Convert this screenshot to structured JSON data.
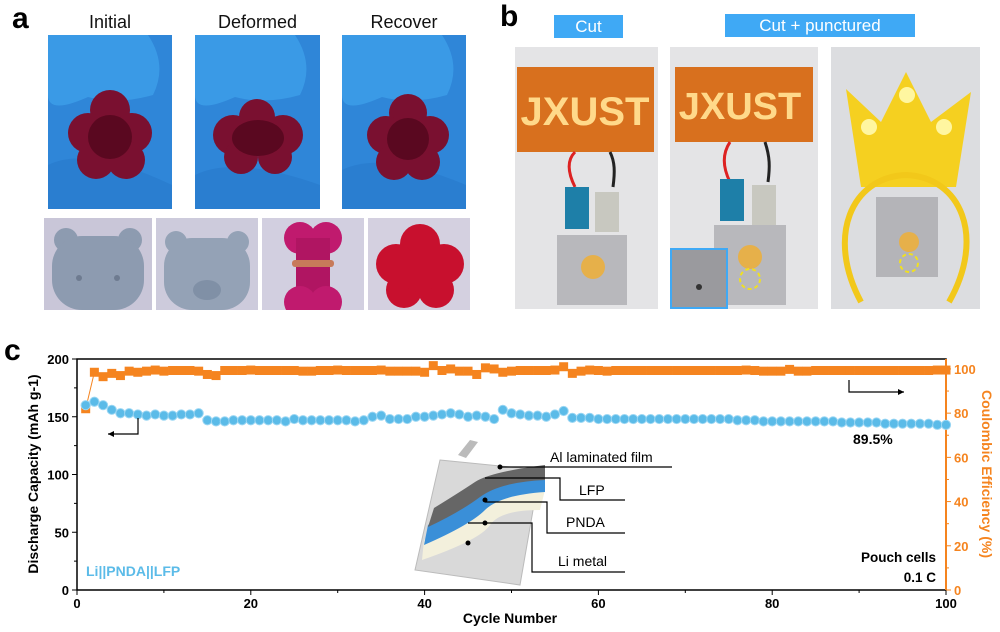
{
  "panel_a": {
    "label": "a",
    "stages": [
      "Initial",
      "Deformed",
      "Recover"
    ]
  },
  "panel_b": {
    "label": "b",
    "tags": [
      "Cut",
      "Cut + punctured"
    ],
    "board_text": "JXUST"
  },
  "panel_c": {
    "label": "c"
  },
  "colors": {
    "capacity": "#5bbbe8",
    "efficiency": "#f5841f",
    "glove": "#2f8fe0",
    "gel_red": "#b0163c"
  },
  "chart_data": {
    "type": "scatter",
    "xlabel": "Cycle Number",
    "ylabel": "Discharge Capacity (mAh g-1)",
    "ylabel_right": "Coulombic Efficiency (%)",
    "xlim": [
      0,
      100
    ],
    "ylim": [
      0,
      200
    ],
    "ylim_right": [
      0,
      104.5
    ],
    "xticks": [
      "0",
      "20",
      "40",
      "60",
      "80",
      "100"
    ],
    "yticks": [
      "0",
      "50",
      "100",
      "150",
      "200"
    ],
    "yticks_right": [
      "0",
      "20",
      "40",
      "60",
      "80",
      "100"
    ],
    "grid": false,
    "series": [
      {
        "axis": "left",
        "marker": "circle",
        "x": [
          1,
          2,
          3,
          4,
          5,
          6,
          7,
          8,
          9,
          10,
          11,
          12,
          13,
          14,
          15,
          16,
          17,
          18,
          19,
          20,
          21,
          22,
          23,
          24,
          25,
          26,
          27,
          28,
          29,
          30,
          31,
          32,
          33,
          34,
          35,
          36,
          37,
          38,
          39,
          40,
          41,
          42,
          43,
          44,
          45,
          46,
          47,
          48,
          49,
          50,
          51,
          52,
          53,
          54,
          55,
          56,
          57,
          58,
          59,
          60,
          61,
          62,
          63,
          64,
          65,
          66,
          67,
          68,
          69,
          70,
          71,
          72,
          73,
          74,
          75,
          76,
          77,
          78,
          79,
          80,
          81,
          82,
          83,
          84,
          85,
          86,
          87,
          88,
          89,
          90,
          91,
          92,
          93,
          94,
          95,
          96,
          97,
          98,
          99,
          100
        ],
        "values": [
          160,
          163,
          160,
          156,
          153,
          153,
          152,
          151,
          152,
          151,
          151,
          152,
          152,
          153,
          147,
          146,
          146,
          147,
          147,
          147,
          147,
          147,
          147,
          146,
          148,
          147,
          147,
          147,
          147,
          147,
          147,
          146,
          147,
          150,
          151,
          148,
          148,
          148,
          150,
          150,
          151,
          152,
          153,
          152,
          150,
          151,
          150,
          148,
          156,
          153,
          152,
          151,
          151,
          150,
          152,
          155,
          149,
          149,
          149,
          148,
          148,
          148,
          148,
          148,
          148,
          148,
          148,
          148,
          148,
          148,
          148,
          148,
          148,
          148,
          148,
          147,
          147,
          147,
          146,
          146,
          146,
          146,
          146,
          146,
          146,
          146,
          146,
          145,
          145,
          145,
          145,
          145,
          144,
          144,
          144,
          144,
          144,
          144,
          143,
          143
        ]
      },
      {
        "axis": "right",
        "marker": "square",
        "x": [
          1,
          2,
          3,
          4,
          5,
          6,
          7,
          8,
          9,
          10,
          11,
          12,
          13,
          14,
          15,
          16,
          17,
          18,
          19,
          20,
          21,
          22,
          23,
          24,
          25,
          26,
          27,
          28,
          29,
          30,
          31,
          32,
          33,
          34,
          35,
          36,
          37,
          38,
          39,
          40,
          41,
          42,
          43,
          44,
          45,
          46,
          47,
          48,
          49,
          50,
          51,
          52,
          53,
          54,
          55,
          56,
          57,
          58,
          59,
          60,
          61,
          62,
          63,
          64,
          65,
          66,
          67,
          68,
          69,
          70,
          71,
          72,
          73,
          74,
          75,
          76,
          77,
          78,
          79,
          80,
          81,
          82,
          83,
          84,
          85,
          86,
          87,
          88,
          89,
          90,
          91,
          92,
          93,
          94,
          95,
          96,
          97,
          98,
          99,
          100
        ],
        "values": [
          82,
          98.5,
          96.5,
          98,
          97,
          99,
          98.5,
          99,
          99.5,
          99,
          99.3,
          99.3,
          99.3,
          99,
          97.5,
          97,
          99.3,
          99.3,
          99.3,
          99.5,
          99.3,
          99.3,
          99.3,
          99.3,
          99.3,
          99,
          99,
          99.3,
          99.3,
          99.5,
          99.3,
          99.3,
          99.3,
          99.3,
          99.5,
          99,
          99,
          99,
          99,
          98.5,
          101.5,
          99.3,
          100,
          99,
          99,
          97.5,
          100.5,
          100,
          98.5,
          99,
          99.3,
          99.3,
          99.3,
          99.3,
          99.5,
          101,
          98,
          99,
          99.5,
          99.3,
          99,
          99.3,
          99.3,
          99.3,
          99.3,
          99.3,
          99.3,
          99.3,
          99.3,
          99.3,
          99.3,
          99.3,
          99.3,
          99.3,
          99.3,
          99.3,
          99.5,
          99.3,
          99,
          99,
          99,
          99.8,
          99,
          99,
          99.3,
          99.3,
          99.3,
          99.3,
          99.3,
          99.3,
          99.3,
          99.3,
          99.3,
          99.3,
          99.3,
          99.3,
          99.3,
          99.3,
          99.5,
          99.5
        ]
      }
    ],
    "annotations": {
      "retention": "89.5%",
      "cell_label": "Li||PNDA||LFP",
      "condition_1": "Pouch cells",
      "condition_2": "0.1 C"
    },
    "inset_labels": [
      "Al laminated film",
      "LFP",
      "PNDA",
      "Li metal"
    ]
  }
}
